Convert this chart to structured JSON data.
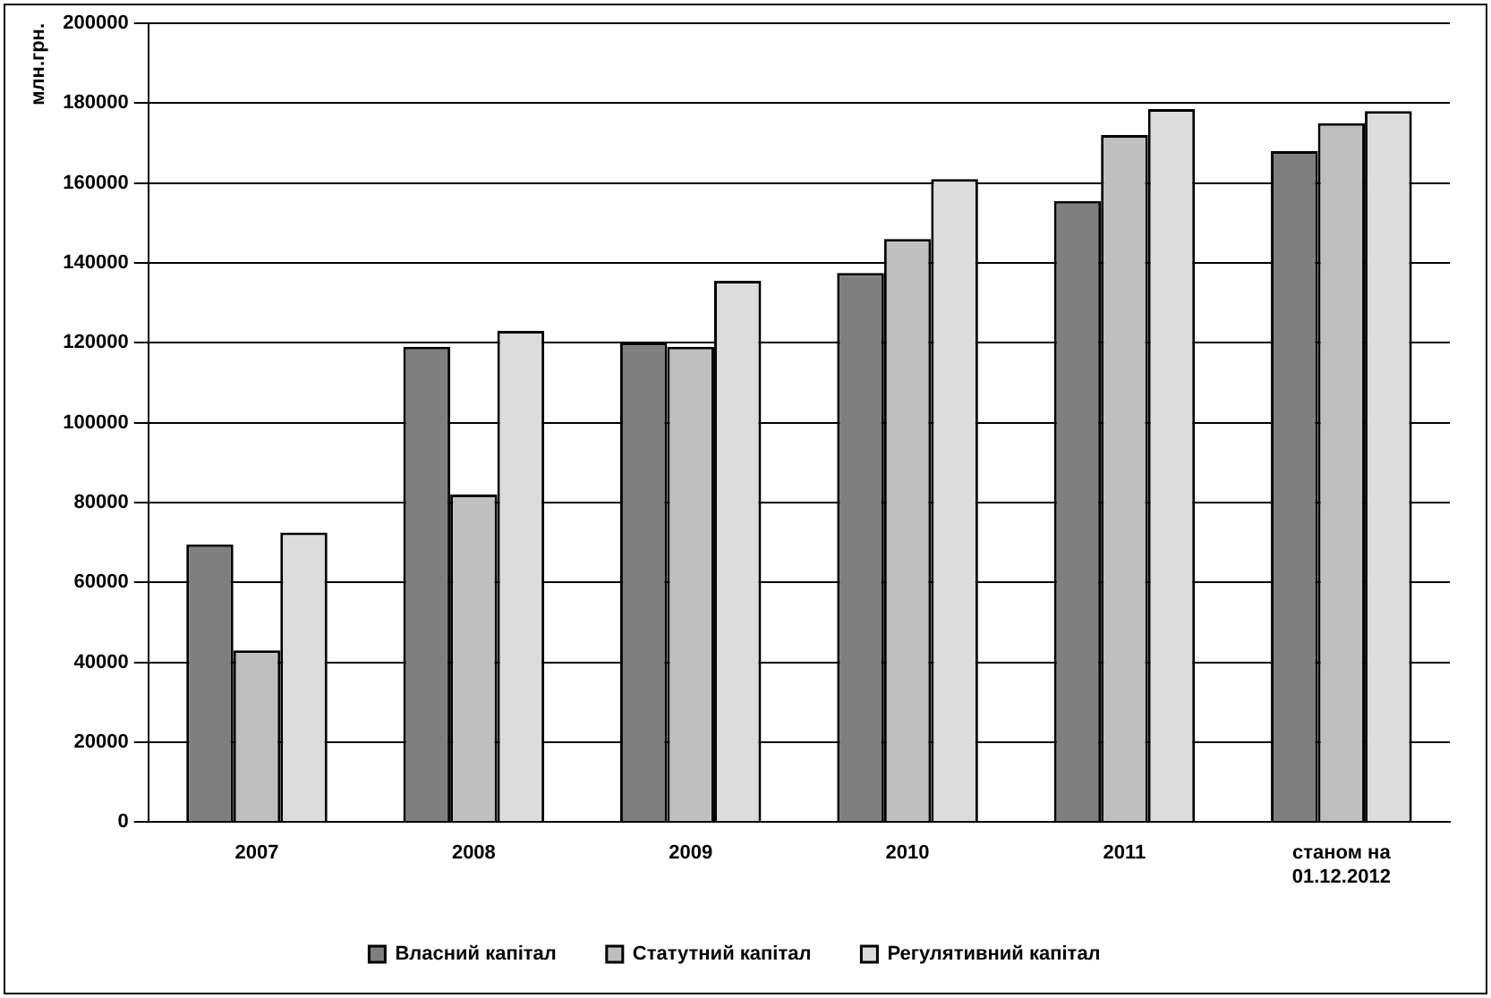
{
  "chart_data": {
    "type": "bar",
    "ylabel": "млн.грн.",
    "categories": [
      "2007",
      "2008",
      "2009",
      "2010",
      "2011",
      "станом на 01.12.2012"
    ],
    "series": [
      {
        "name": "Власний капітал",
        "color": "#7f7f7f",
        "values": [
          69500,
          119000,
          120000,
          137500,
          155500,
          168000
        ]
      },
      {
        "name": "Статутний капітал",
        "color": "#bfbfbf",
        "values": [
          43000,
          82000,
          119000,
          146000,
          172000,
          175000
        ]
      },
      {
        "name": "Регулятивний капітал",
        "color": "#dcdcdc",
        "values": [
          72500,
          123000,
          135500,
          161000,
          178500,
          178000
        ]
      }
    ],
    "ylim": [
      0,
      200000
    ],
    "yticks": [
      0,
      20000,
      40000,
      60000,
      80000,
      100000,
      120000,
      140000,
      160000,
      180000,
      200000
    ],
    "grid": "y",
    "legend": "bottom"
  }
}
